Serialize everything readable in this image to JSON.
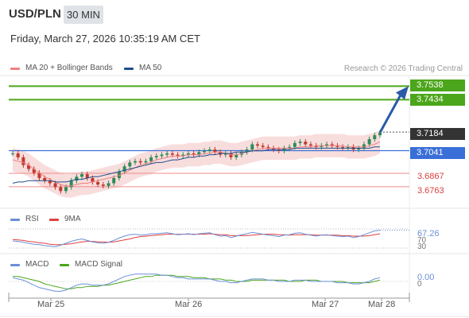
{
  "header": {
    "pair": "USD/PLN",
    "timeframe": "30 MIN",
    "datetime": "Friday, March 27, 2026 10:35:19 AM CET",
    "credit": "Research © 2026 Trading Central"
  },
  "colors": {
    "up": "#2e8b57",
    "down": "#c0392b",
    "ma20": "#f08080",
    "ma50": "#1f4e8c",
    "band_fill": "#f6d2d2",
    "target": "#4ca61b",
    "pivot": "#3a6fd8",
    "support": "#f08a8a",
    "arrow": "#2a5aa8",
    "rsi": "#6a8fd8",
    "rsi_ma": "#e04040",
    "macd": "#6a8fd8",
    "macd_signal": "#4ca61b"
  },
  "legend": {
    "ma20": "MA 20 + Bollinger Bands",
    "ma50": "MA 50",
    "rsi": "RSI",
    "rsi_ma": "9MA",
    "macd": "MACD",
    "macd_signal": "MACD Signal"
  },
  "levels": {
    "target2": "3.7538",
    "target1": "3.7434",
    "last": "3.7184",
    "pivot": "3.7041",
    "support1": "3.6867",
    "support2": "3.6763"
  },
  "rsi_panel": {
    "value": "67.26",
    "upper": "70",
    "lower": "30"
  },
  "macd_panel": {
    "value": "0.00",
    "zero": "0"
  },
  "chart_data": {
    "type": "line",
    "title": "USD/PLN",
    "timeframe": "30 MIN",
    "x_ticks": [
      "Mar 25",
      "Mar 26",
      "Mar 27",
      "Mar 28"
    ],
    "ylim": [
      3.664,
      3.762
    ],
    "horizontal_levels": [
      {
        "label": "3.7538",
        "value": 3.7538,
        "kind": "target"
      },
      {
        "label": "3.7434",
        "value": 3.7434,
        "kind": "target"
      },
      {
        "label": "3.7184",
        "value": 3.7184,
        "kind": "last"
      },
      {
        "label": "3.7041",
        "value": 3.7041,
        "kind": "pivot"
      },
      {
        "label": "3.6867",
        "value": 3.6867,
        "kind": "support"
      },
      {
        "label": "3.6763",
        "value": 3.6763,
        "kind": "support"
      }
    ],
    "price_path": [
      3.702,
      3.699,
      3.693,
      3.69,
      3.687,
      3.683,
      3.681,
      3.679,
      3.676,
      3.673,
      3.676,
      3.681,
      3.684,
      3.686,
      3.683,
      3.68,
      3.678,
      3.677,
      3.679,
      3.683,
      3.688,
      3.692,
      3.695,
      3.696,
      3.695,
      3.696,
      3.699,
      3.7,
      3.701,
      3.702,
      3.701,
      3.7,
      3.701,
      3.702,
      3.701,
      3.703,
      3.704,
      3.705,
      3.703,
      3.701,
      3.702,
      3.699,
      3.701,
      3.703,
      3.705,
      3.709,
      3.708,
      3.707,
      3.706,
      3.705,
      3.704,
      3.706,
      3.707,
      3.71,
      3.711,
      3.709,
      3.708,
      3.707,
      3.708,
      3.709,
      3.708,
      3.707,
      3.706,
      3.707,
      3.705,
      3.706,
      3.709,
      3.713,
      3.716,
      3.718
    ],
    "ma20": [
      3.697,
      3.696,
      3.695,
      3.693,
      3.69,
      3.687,
      3.684,
      3.682,
      3.68,
      3.678,
      3.677,
      3.677,
      3.678,
      3.679,
      3.679,
      3.68,
      3.681,
      3.682,
      3.683,
      3.684,
      3.685,
      3.687,
      3.689,
      3.691,
      3.693,
      3.694,
      3.695,
      3.697,
      3.698,
      3.699,
      3.7,
      3.7,
      3.7,
      3.701,
      3.701,
      3.701,
      3.702,
      3.702,
      3.703,
      3.703,
      3.702,
      3.701,
      3.701,
      3.702,
      3.703,
      3.704,
      3.705,
      3.706,
      3.706,
      3.706,
      3.706,
      3.706,
      3.706,
      3.706,
      3.707,
      3.707,
      3.707,
      3.708,
      3.708,
      3.708,
      3.708,
      3.708,
      3.708,
      3.707,
      3.707,
      3.707,
      3.707,
      3.708,
      3.709,
      3.711
    ],
    "ma50": [
      3.679,
      3.68,
      3.68,
      3.681,
      3.681,
      3.681,
      3.681,
      3.681,
      3.68,
      3.68,
      3.68,
      3.681,
      3.682,
      3.682,
      3.683,
      3.684,
      3.684,
      3.685,
      3.686,
      3.687,
      3.688,
      3.689,
      3.69,
      3.691,
      3.692,
      3.693,
      3.694,
      3.695,
      3.695,
      3.696,
      3.697,
      3.697,
      3.698,
      3.699,
      3.699,
      3.7,
      3.7,
      3.701,
      3.701,
      3.702,
      3.702,
      3.702,
      3.703,
      3.703,
      3.703,
      3.704,
      3.704,
      3.704,
      3.705,
      3.705,
      3.705,
      3.705,
      3.705,
      3.706,
      3.706,
      3.706,
      3.706,
      3.706,
      3.706,
      3.706,
      3.706,
      3.706,
      3.706,
      3.706,
      3.706,
      3.706,
      3.706,
      3.706,
      3.707,
      3.707
    ],
    "rsi": [
      45,
      44,
      42,
      40,
      38,
      37,
      35,
      34,
      33,
      36,
      40,
      44,
      47,
      49,
      46,
      43,
      41,
      40,
      42,
      46,
      51,
      55,
      58,
      59,
      57,
      58,
      60,
      60,
      61,
      62,
      60,
      58,
      59,
      60,
      58,
      60,
      61,
      62,
      58,
      55,
      56,
      52,
      55,
      58,
      60,
      63,
      61,
      59,
      57,
      56,
      54,
      57,
      58,
      61,
      62,
      59,
      57,
      55,
      57,
      58,
      56,
      55,
      54,
      55,
      52,
      54,
      58,
      62,
      66,
      67.26
    ],
    "rsi_ma": [
      48,
      47,
      46,
      44,
      43,
      41,
      40,
      38,
      37,
      37,
      38,
      39,
      41,
      43,
      44,
      44,
      43,
      43,
      42,
      43,
      45,
      47,
      49,
      52,
      54,
      55,
      56,
      57,
      58,
      59,
      59,
      59,
      59,
      59,
      59,
      59,
      59,
      60,
      59,
      58,
      58,
      56,
      56,
      56,
      56,
      57,
      58,
      59,
      59,
      59,
      58,
      58,
      57,
      58,
      58,
      58,
      58,
      57,
      57,
      57,
      57,
      57,
      56,
      56,
      55,
      55,
      55,
      56,
      58,
      60
    ],
    "macd": [
      0.003,
      0.002,
      0.001,
      -0.001,
      -0.003,
      -0.005,
      -0.006,
      -0.007,
      -0.008,
      -0.008,
      -0.007,
      -0.005,
      -0.003,
      -0.002,
      -0.002,
      -0.003,
      -0.003,
      -0.003,
      -0.002,
      0.0,
      0.002,
      0.004,
      0.005,
      0.006,
      0.006,
      0.006,
      0.006,
      0.006,
      0.005,
      0.005,
      0.004,
      0.003,
      0.003,
      0.002,
      0.002,
      0.002,
      0.002,
      0.002,
      0.001,
      0.0,
      0.0,
      -0.001,
      -0.001,
      0.0,
      0.001,
      0.002,
      0.002,
      0.002,
      0.001,
      0.001,
      0.0,
      0.0,
      0.0,
      0.001,
      0.001,
      0.001,
      0.0,
      0.0,
      0.0,
      0.0,
      0.0,
      -0.001,
      -0.001,
      -0.001,
      -0.002,
      -0.002,
      -0.001,
      0.0,
      0.002,
      0.003
    ],
    "macd_signal": [
      0.004,
      0.004,
      0.003,
      0.002,
      0.001,
      0.0,
      -0.002,
      -0.003,
      -0.004,
      -0.005,
      -0.006,
      -0.006,
      -0.005,
      -0.005,
      -0.004,
      -0.004,
      -0.004,
      -0.003,
      -0.003,
      -0.002,
      -0.001,
      0.0,
      0.001,
      0.002,
      0.003,
      0.004,
      0.004,
      0.005,
      0.005,
      0.005,
      0.005,
      0.004,
      0.004,
      0.004,
      0.003,
      0.003,
      0.003,
      0.002,
      0.002,
      0.002,
      0.001,
      0.001,
      0.0,
      0.0,
      0.0,
      0.001,
      0.001,
      0.001,
      0.001,
      0.001,
      0.001,
      0.001,
      0.0,
      0.0,
      0.0,
      0.001,
      0.001,
      0.001,
      0.0,
      0.0,
      0.0,
      0.0,
      0.0,
      -0.001,
      -0.001,
      -0.001,
      -0.001,
      -0.001,
      0.0,
      0.001
    ]
  }
}
